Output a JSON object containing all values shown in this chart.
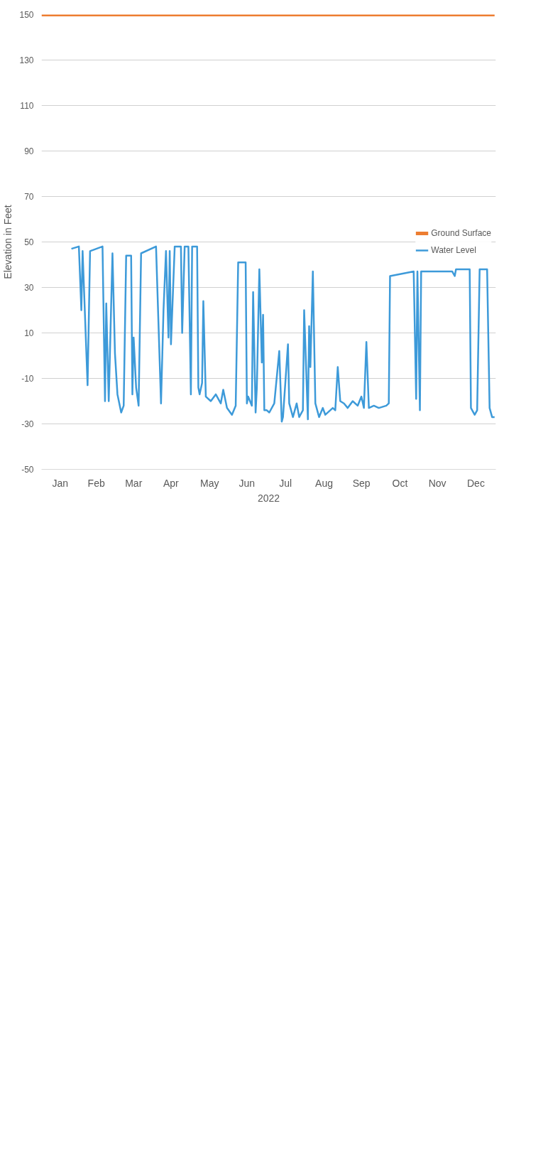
{
  "chart_data": {
    "type": "line",
    "xlabel": "2022",
    "ylabel": "Elevation in Feet",
    "xlim": [
      "2022-01-01",
      "2023-01-01"
    ],
    "xticks": [
      {
        "value": "2022-01-16",
        "label": "Jan"
      },
      {
        "value": "2022-02-14",
        "label": "Feb"
      },
      {
        "value": "2022-03-16",
        "label": "Mar"
      },
      {
        "value": "2022-04-15",
        "label": "Apr"
      },
      {
        "value": "2022-05-16",
        "label": "May"
      },
      {
        "value": "2022-06-15",
        "label": "Jun"
      },
      {
        "value": "2022-07-16",
        "label": "Jul"
      },
      {
        "value": "2022-08-16",
        "label": "Aug"
      },
      {
        "value": "2022-09-15",
        "label": "Sep"
      },
      {
        "value": "2022-10-16",
        "label": "Oct"
      },
      {
        "value": "2022-11-15",
        "label": "Nov"
      },
      {
        "value": "2022-12-16",
        "label": "Dec"
      }
    ],
    "ylim": [
      -50,
      150
    ],
    "yticks": [
      -50,
      -30,
      -10,
      10,
      30,
      50,
      70,
      90,
      110,
      130,
      150
    ],
    "grid": "y",
    "legend": "right",
    "series": [
      {
        "name": "Ground Surface",
        "color": "#ed7d31",
        "x": [
          "2022-01-01",
          "2022-12-31"
        ],
        "values": [
          150,
          150
        ]
      },
      {
        "name": "Water Level",
        "color": "#3d9ad9",
        "x": [
          "2022-01-25",
          "2022-01-31",
          "2022-02-02",
          "2022-02-03",
          "2022-02-07",
          "2022-02-09",
          "2022-02-19",
          "2022-02-21",
          "2022-02-22",
          "2022-02-24",
          "2022-02-27",
          "2022-03-01",
          "2022-03-03",
          "2022-03-06",
          "2022-03-08",
          "2022-03-10",
          "2022-03-14",
          "2022-03-15",
          "2022-03-16",
          "2022-03-18",
          "2022-03-20",
          "2022-03-22",
          "2022-04-03",
          "2022-04-07",
          "2022-04-09",
          "2022-04-11",
          "2022-04-13",
          "2022-04-14",
          "2022-04-15",
          "2022-04-18",
          "2022-04-23",
          "2022-04-24",
          "2022-04-26",
          "2022-04-29",
          "2022-05-01",
          "2022-05-02",
          "2022-05-06",
          "2022-05-07",
          "2022-05-08",
          "2022-05-10",
          "2022-05-11",
          "2022-05-13",
          "2022-05-17",
          "2022-05-21",
          "2022-05-25",
          "2022-05-27",
          "2022-05-30",
          "2022-06-03",
          "2022-06-06",
          "2022-06-08",
          "2022-06-14",
          "2022-06-15",
          "2022-06-16",
          "2022-06-19",
          "2022-06-20",
          "2022-06-22",
          "2022-06-23",
          "2022-06-25",
          "2022-06-27",
          "2022-06-28",
          "2022-06-29",
          "2022-07-01",
          "2022-07-03",
          "2022-07-07",
          "2022-07-11",
          "2022-07-13",
          "2022-07-14",
          "2022-07-18",
          "2022-07-19",
          "2022-07-22",
          "2022-07-25",
          "2022-07-27",
          "2022-07-30",
          "2022-07-31",
          "2022-08-03",
          "2022-08-04",
          "2022-08-05",
          "2022-08-07",
          "2022-08-09",
          "2022-08-12",
          "2022-08-15",
          "2022-08-17",
          "2022-08-23",
          "2022-08-25",
          "2022-08-27",
          "2022-08-29",
          "2022-09-01",
          "2022-09-04",
          "2022-09-08",
          "2022-09-12",
          "2022-09-15",
          "2022-09-17",
          "2022-09-19",
          "2022-09-21",
          "2022-09-25",
          "2022-09-29",
          "2022-10-05",
          "2022-10-07",
          "2022-10-08",
          "2022-10-27",
          "2022-10-29",
          "2022-10-30",
          "2022-11-01",
          "2022-11-02",
          "2022-11-27",
          "2022-11-29",
          "2022-11-30",
          "2022-12-11",
          "2022-12-12",
          "2022-12-15",
          "2022-12-17",
          "2022-12-19",
          "2022-12-25",
          "2022-12-27",
          "2022-12-29",
          "2022-12-31"
        ],
        "values": [
          47,
          48,
          20,
          46,
          -13,
          46,
          48,
          -20,
          23,
          -20,
          45,
          1,
          -17,
          -25,
          -22,
          44,
          44,
          -17,
          8,
          -14,
          -22,
          45,
          48,
          -21,
          20,
          46,
          8,
          46,
          5,
          48,
          48,
          10,
          48,
          48,
          -17,
          48,
          48,
          -14,
          -17,
          -12,
          24,
          -18,
          -20,
          -17,
          -21,
          -15,
          -23,
          -26,
          -22,
          41,
          41,
          -21,
          -18,
          -22,
          28,
          -25,
          -14,
          38,
          -3,
          18,
          -24,
          -24,
          -25,
          -21,
          2,
          -29,
          -27,
          5,
          -21,
          -27,
          -21,
          -27,
          -24,
          20,
          -28,
          13,
          -5,
          37,
          -21,
          -27,
          -23,
          -26,
          -23,
          -24,
          -5,
          -20,
          -21,
          -23,
          -20,
          -22,
          -18,
          -23,
          6,
          -23,
          -22,
          -23,
          -22,
          -21,
          35,
          37,
          -19,
          37,
          -24,
          37,
          37,
          35,
          38,
          38,
          -23,
          -26,
          -24,
          38,
          38,
          -23,
          -27,
          -27
        ]
      }
    ]
  }
}
